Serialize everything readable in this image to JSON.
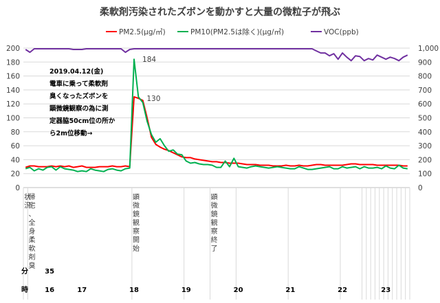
{
  "chart_data": {
    "type": "line",
    "title": "柔軟剤汚染されたズボンを動かすと大量の微粒子が飛ぶ",
    "legend": {
      "position": "top",
      "entries": [
        "PM2.5(μg/㎥)",
        "PM10(PM2.5は除く)(μg/㎥)",
        "VOC(ppb)"
      ]
    },
    "y_left": {
      "min": 0,
      "max": 200,
      "ticks": [
        "0",
        "20",
        "40",
        "60",
        "80",
        "100",
        "120",
        "140",
        "160",
        "180",
        "200"
      ]
    },
    "y_right": {
      "min": 0,
      "max": 1000,
      "ticks": [
        "0",
        "100",
        "200",
        "300",
        "400",
        "500",
        "600",
        "700",
        "800",
        "900",
        "1,000"
      ]
    },
    "grid": "horizontal",
    "x_count": 89,
    "series": [
      {
        "name": "PM2.5(μg/㎥)",
        "axis": "left",
        "color": "#ff0000",
        "values": [
          29,
          31,
          31,
          30,
          30,
          30,
          31,
          30,
          31,
          30,
          31,
          29,
          30,
          31,
          29,
          29,
          29,
          30,
          30,
          30,
          31,
          30,
          30,
          31,
          30,
          130,
          128,
          125,
          100,
          72,
          62,
          58,
          55,
          53,
          50,
          47,
          44,
          43,
          43,
          41,
          40,
          39,
          38,
          37,
          37,
          36,
          36,
          35,
          35,
          35,
          34,
          33,
          33,
          33,
          32,
          32,
          32,
          31,
          31,
          31,
          32,
          31,
          31,
          32,
          31,
          31,
          32,
          33,
          33,
          32,
          32,
          32,
          32,
          32,
          33,
          34,
          34,
          33,
          33,
          33,
          33,
          32,
          32,
          32,
          32,
          32,
          32,
          31,
          31
        ]
      },
      {
        "name": "PM10(PM2.5は除く)(μg/㎥)",
        "axis": "left",
        "color": "#00b050",
        "values": [
          27,
          29,
          24,
          27,
          25,
          29,
          30,
          25,
          30,
          27,
          26,
          25,
          23,
          24,
          23,
          27,
          25,
          24,
          23,
          26,
          27,
          25,
          24,
          27,
          28,
          184,
          130,
          122,
          95,
          76,
          65,
          70,
          60,
          52,
          54,
          48,
          47,
          38,
          35,
          36,
          34,
          33,
          33,
          32,
          29,
          29,
          38,
          30,
          42,
          30,
          29,
          28,
          30,
          31,
          30,
          29,
          28,
          29,
          30,
          29,
          28,
          27,
          27,
          30,
          28,
          26,
          26,
          27,
          28,
          29,
          30,
          27,
          27,
          30,
          28,
          29,
          30,
          27,
          30,
          28,
          28,
          29,
          27,
          31,
          28,
          27,
          32,
          28,
          27
        ]
      },
      {
        "name": "VOC(ppb)",
        "axis": "right",
        "color": "#7030a0",
        "values": [
          990,
          970,
          995,
          995,
          995,
          995,
          995,
          995,
          995,
          995,
          995,
          990,
          990,
          990,
          995,
          995,
          995,
          995,
          995,
          995,
          995,
          995,
          995,
          970,
          990,
          995,
          995,
          995,
          995,
          995,
          995,
          995,
          995,
          995,
          995,
          995,
          995,
          995,
          995,
          995,
          995,
          995,
          995,
          995,
          995,
          995,
          995,
          995,
          995,
          995,
          995,
          995,
          995,
          995,
          995,
          995,
          995,
          995,
          995,
          995,
          995,
          995,
          995,
          995,
          995,
          995,
          995,
          980,
          965,
          965,
          945,
          960,
          920,
          965,
          935,
          910,
          945,
          940,
          910,
          925,
          915,
          950,
          935,
          920,
          935,
          925,
          910,
          935,
          950
        ]
      }
    ],
    "data_labels": [
      {
        "series": "PM10(PM2.5は除く)(μg/㎥)",
        "index": 25,
        "text": "184"
      },
      {
        "series": "PM2.5(μg/㎥)",
        "index": 26,
        "text": "130"
      }
    ],
    "annotation": {
      "lines": [
        "2019.04.12(金)",
        "電車に乗って柔軟剤",
        "臭くなったズボンを",
        "顕微鏡観察の為に測",
        "定器脇50cm位の所か",
        "ら2m位移動→"
      ]
    },
    "status_labels": [
      {
        "index": 0,
        "text": "状況"
      },
      {
        "index": 1,
        "text": "帰宅、全身柔軟剤臭"
      },
      {
        "index": 25,
        "text": "顕微鏡観察開始"
      },
      {
        "index": 43,
        "text": "顕微鏡観察終了"
      }
    ],
    "minute_row": {
      "label": "分",
      "entries": [
        {
          "index": 3,
          "text": "35"
        }
      ]
    },
    "hour_row": {
      "label": "時",
      "entries": [
        {
          "index": 3,
          "text": "16"
        },
        {
          "index": 13,
          "text": "17"
        },
        {
          "index": 25,
          "text": "18"
        },
        {
          "index": 37,
          "text": "19"
        },
        {
          "index": 49,
          "text": "20"
        },
        {
          "index": 61,
          "text": "21"
        },
        {
          "index": 73,
          "text": "22"
        },
        {
          "index": 83,
          "text": "23"
        }
      ]
    }
  }
}
